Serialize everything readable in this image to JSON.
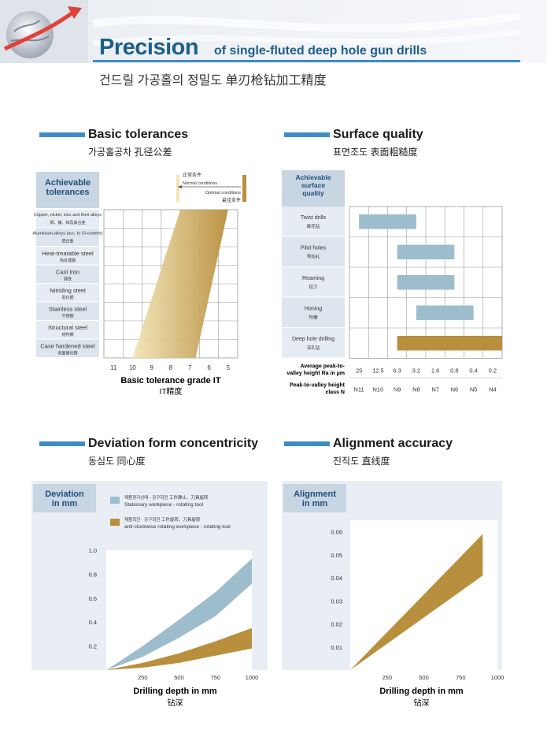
{
  "header": {
    "title_main": "Precision",
    "title_sub": "of single-fluted deep hole gun drills",
    "title_asian": "건드릴 가공홀의 정밀도  单刃枪钻加工精度"
  },
  "sections": {
    "basic": {
      "title": "Basic tolerances",
      "subtitle": "가공홀공차  孔径公差"
    },
    "surface": {
      "title": "Surface quality",
      "subtitle": "표면조도  表面粗糙度"
    },
    "deviation": {
      "title": "Deviation form concentricity",
      "subtitle": "동심도  同心度"
    },
    "alignment": {
      "title": "Alignment accuracy",
      "subtitle": "진직도  直线度"
    }
  },
  "chart_data": [
    {
      "type": "area",
      "id": "basic-tolerances",
      "row_header": [
        "Achievable",
        "tolerances"
      ],
      "rows": [
        {
          "en": "Copper, nickel, zinc and their alloys",
          "cn": "铜、镍、锌及其合金"
        },
        {
          "en": "Aluminium-alloys (acc. to Si-content)",
          "cn": "铝合金"
        },
        {
          "en": "Heat-treatable steel",
          "cn": "热处理钢"
        },
        {
          "en": "Cast iron",
          "cn": "铸铁"
        },
        {
          "en": "Nitriding steel",
          "cn": "氮化钢"
        },
        {
          "en": "Stainless steel",
          "cn": "不锈钢"
        },
        {
          "en": "Structural steel",
          "cn": "结构钢"
        },
        {
          "en": "Case hardened steel",
          "cn": "表面硬化钢"
        }
      ],
      "x_ticks": [
        "11",
        "10",
        "9",
        "8",
        "7",
        "6",
        "5"
      ],
      "xlabel": "Basic tolerance grade IT",
      "xlabel_cn": "IT精度",
      "band_top": [
        7.5,
        5.0
      ],
      "band_bottom": [
        10.0,
        6.7
      ],
      "legend": {
        "normal_cn": "正常条件",
        "normal": "Normal conditions",
        "optimal": "Optimal conditions",
        "optimal_cn": "最佳条件"
      },
      "color": "#b88f3c"
    },
    {
      "type": "bar",
      "id": "surface-quality",
      "row_header": [
        "Achievable",
        "surface",
        "quality"
      ],
      "categories": [
        {
          "en": "Twist drills",
          "cn": "麻花钻",
          "from": 0,
          "to": 3
        },
        {
          "en": "Pilot holes",
          "cn": "导向孔",
          "from": 2,
          "to": 5
        },
        {
          "en": "Reaming",
          "cn": "铰刀",
          "from": 2,
          "to": 5
        },
        {
          "en": "Honing",
          "cn": "珩磨",
          "from": 3,
          "to": 6
        },
        {
          "en": "Deep hole drilling",
          "cn": "深孔钻",
          "from": 2,
          "to": 7
        }
      ],
      "ra_label": [
        "Average peak-to-",
        "valley height Ra in µm"
      ],
      "ra_values": [
        "25",
        "12.5",
        "6.3",
        "3.2",
        "1.6",
        "0.8",
        "0.4",
        "0.2"
      ],
      "class_label": [
        "Peak-to-valley height",
        "class N"
      ],
      "class_values": [
        "N11",
        "N10",
        "N9",
        "N8",
        "N7",
        "N6",
        "N5",
        "N4"
      ],
      "colors": {
        "blue": "#9dbdcc",
        "gold": "#b88f3c"
      }
    },
    {
      "type": "area",
      "id": "deviation-concentricity",
      "ylabel": [
        "Deviation",
        "in mm"
      ],
      "xlabel": "Drilling depth in mm",
      "xlabel_cn": "钻深",
      "xlim": [
        0,
        1000
      ],
      "ylim": [
        0,
        1.0
      ],
      "x_ticks": [
        250,
        500,
        750,
        1000
      ],
      "y_ticks": [
        "0.2",
        "0.4",
        "0.6",
        "0.8",
        "1.0"
      ],
      "series": [
        {
          "name": "Stationary workpiece - rotating tool",
          "name_native": "제품정지상태 - 공구회전  工件静止、刀具旋转",
          "color": "#9dbdcc",
          "x": [
            0,
            250,
            500,
            750,
            1000
          ],
          "upper": [
            0.0,
            0.2,
            0.42,
            0.65,
            0.93
          ],
          "lower": [
            0.0,
            0.11,
            0.27,
            0.45,
            0.72
          ]
        },
        {
          "name": "anti-clockwise rotating workpiece - rotating tool",
          "name_native": "제품회전 - 공구회전  工件旋转、刀具旋转",
          "color": "#b88f3c",
          "x": [
            0,
            250,
            500,
            750,
            1000
          ],
          "upper": [
            0.0,
            0.06,
            0.14,
            0.24,
            0.35
          ],
          "lower": [
            0.0,
            0.02,
            0.06,
            0.12,
            0.18
          ]
        }
      ]
    },
    {
      "type": "area",
      "id": "alignment-accuracy",
      "ylabel": [
        "Alignment",
        "in mm"
      ],
      "xlabel": "Drilling depth in mm",
      "xlabel_cn": "钻深",
      "xlim": [
        0,
        1000
      ],
      "ylim": [
        0,
        0.065
      ],
      "x_ticks": [
        250,
        500,
        750,
        1000
      ],
      "y_ticks": [
        "0.01",
        "0.02",
        "0.03",
        "0.04",
        "0.05",
        "0.06"
      ],
      "band": {
        "x": [
          0,
          900
        ],
        "upper": [
          0,
          0.059
        ],
        "lower": [
          0,
          0.041
        ]
      },
      "color": "#b88f3c"
    }
  ]
}
